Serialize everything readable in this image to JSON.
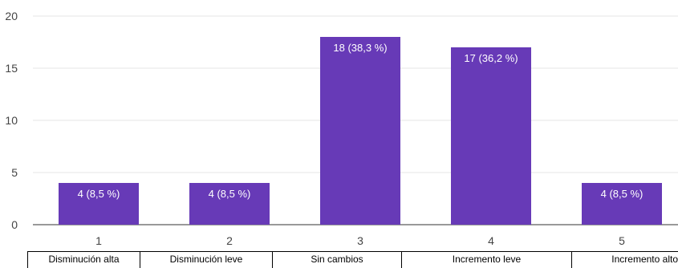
{
  "chart_data": {
    "type": "bar",
    "categories": [
      "1",
      "2",
      "3",
      "4",
      "5"
    ],
    "values": [
      4,
      4,
      18,
      17,
      4
    ],
    "data_labels": [
      "4 (8,5 %)",
      "4 (8,5 %)",
      "18 (38,3 %)",
      "17 (36,2 %)",
      "4 (8,5 %)"
    ],
    "yticks": [
      "0",
      "5",
      "10",
      "15",
      "20"
    ],
    "ylim": [
      0,
      20
    ],
    "bar_color": "#673ab7",
    "grid": true
  },
  "category_descriptions": [
    "Disminución alta",
    "Disminución leve",
    "Sin cambios",
    "Incremento leve",
    "Incremento alto"
  ]
}
